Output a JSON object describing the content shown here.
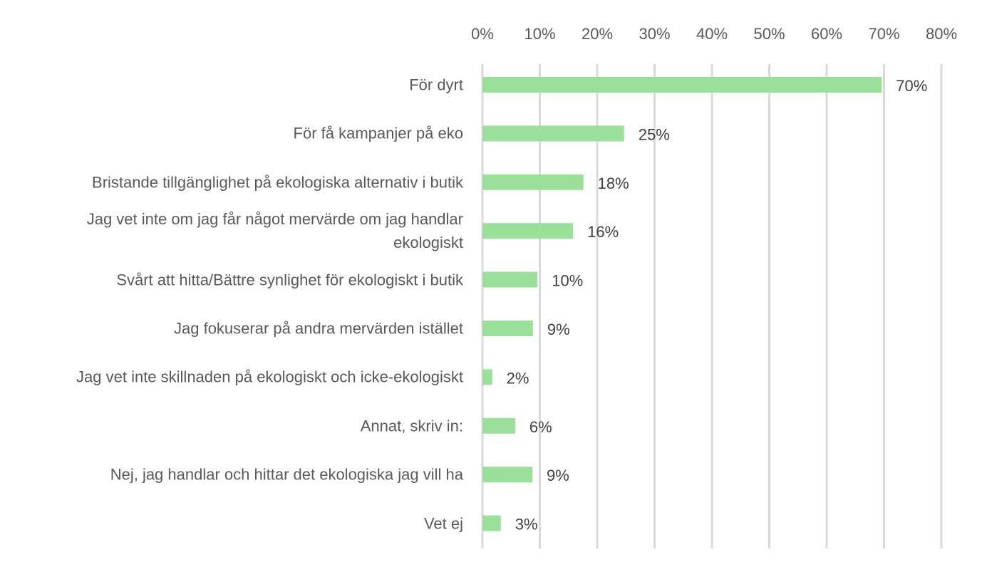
{
  "chart_data": {
    "type": "bar",
    "orientation": "horizontal",
    "title": "",
    "xlabel": "",
    "ylabel": "",
    "xlim": [
      0,
      80
    ],
    "x_ticks": [
      "0%",
      "10%",
      "20%",
      "30%",
      "40%",
      "50%",
      "60%",
      "70%",
      "80%"
    ],
    "x_tick_values": [
      0,
      10,
      20,
      30,
      40,
      50,
      60,
      70,
      80
    ],
    "axis_position": "top",
    "grid": true,
    "bar_color": "#9be09a",
    "categories": [
      "För dyrt",
      "För få kampanjer på eko",
      "Bristande tillgänglighet på ekologiska alternativ i butik",
      "Jag vet inte om jag får något mervärde om jag handlar ekologiskt",
      "Svårt att hitta/Bättre synlighet för ekologiskt i butik",
      "Jag fokuserar på andra mervärden istället",
      "Jag vet inte skillnaden på ekologiskt och icke-ekologiskt",
      "Annat, skriv in:",
      "Nej, jag handlar och hittar det ekologiska jag vill ha",
      "Vet ej"
    ],
    "values": [
      69.6,
      24.7,
      17.6,
      15.8,
      9.6,
      8.8,
      1.7,
      5.7,
      8.7,
      3.2
    ],
    "data_labels": [
      "70%",
      "25%",
      "18%",
      "16%",
      "10%",
      "9%",
      "2%",
      "6%",
      "9%",
      "3%"
    ]
  }
}
